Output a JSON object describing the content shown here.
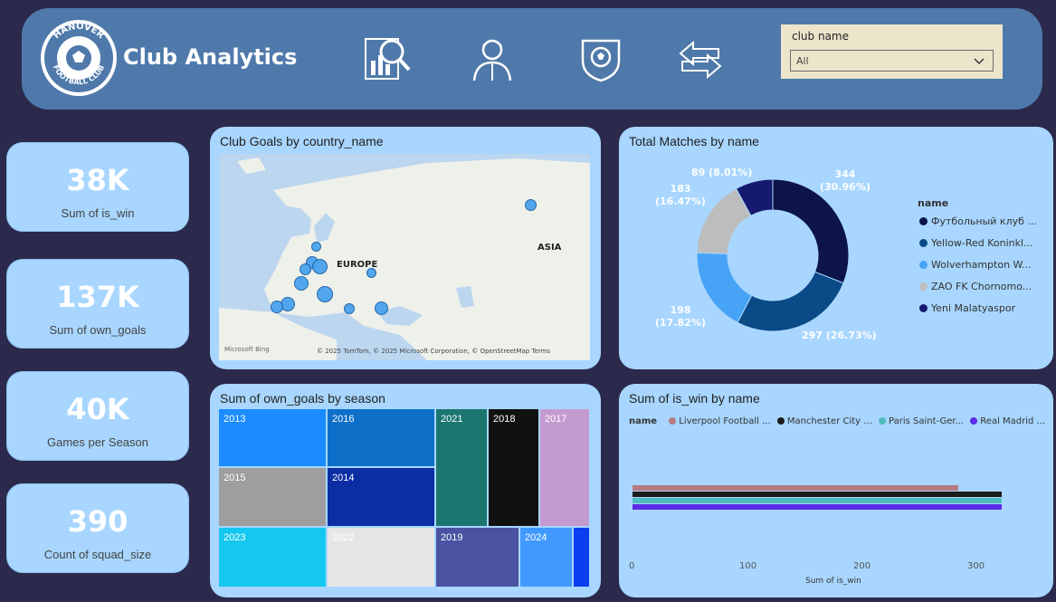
{
  "header": {
    "logo_top_text": "HANOVER",
    "logo_bottom_text": "FOOTBALL CLUB",
    "title": "Club Analytics",
    "nav_icons": [
      "analytics-icon",
      "player-icon",
      "club-badge-icon",
      "swap-icon"
    ],
    "filter": {
      "label": "club name",
      "value": "All"
    }
  },
  "kpis": [
    {
      "value": "38K",
      "label": "Sum of is_win"
    },
    {
      "value": "137K",
      "label": "Sum of own_goals"
    },
    {
      "value": "40K",
      "label": "Games per Season"
    },
    {
      "value": "390",
      "label": "Count of squad_size"
    }
  ],
  "map_panel": {
    "title": "Club Goals by country_name",
    "labels": {
      "europe": "EUROPE",
      "asia": "ASIA"
    },
    "credit": "© 2025 TomTom, © 2025 Microsoft Corporation, © OpenStreetMap  Terms",
    "bing": "Microsoft Bing"
  },
  "donut_panel": {
    "title": "Total Matches by name",
    "legend_title": "name",
    "legend": [
      {
        "label": "Футбольный клуб ...",
        "color": "#0c1448"
      },
      {
        "label": "Yellow-Red Koninkl...",
        "color": "#0a4a86"
      },
      {
        "label": "Wolverhampton W...",
        "color": "#47a3f5"
      },
      {
        "label": "ZAO FK Chornomo...",
        "color": "#bdbdbd"
      },
      {
        "label": "Yeni Malatyaspor",
        "color": "#161a6e"
      }
    ],
    "data_labels": [
      {
        "line1": "344",
        "line2": "(30.96%)"
      },
      {
        "line1": "297 (26.73%)",
        "line2": ""
      },
      {
        "line1": "198",
        "line2": "(17.82%)"
      },
      {
        "line1": "183",
        "line2": "(16.47%)"
      },
      {
        "line1": "89 (8.01%)",
        "line2": ""
      }
    ]
  },
  "treemap_panel": {
    "title": "Sum of own_goals by season",
    "tiles": [
      {
        "label": "2013",
        "color": "#1a8cff"
      },
      {
        "label": "2016",
        "color": "#0e6fc9"
      },
      {
        "label": "2021",
        "color": "#1b7670"
      },
      {
        "label": "2018",
        "color": "#111111"
      },
      {
        "label": "2017",
        "color": "#c49bd1"
      },
      {
        "label": "2015",
        "color": "#9e9e9e"
      },
      {
        "label": "2014",
        "color": "#0b2ea4"
      },
      {
        "label": "2023",
        "color": "#15c8f0"
      },
      {
        "label": "2022",
        "color": "#e6e6e6"
      },
      {
        "label": "2019",
        "color": "#4a53a2"
      },
      {
        "label": "2024",
        "color": "#4099ff"
      },
      {
        "label": "",
        "color": "#0d3df0"
      }
    ]
  },
  "bar_panel": {
    "title": "Sum of is_win by name",
    "legend_title": "name",
    "x_axis_title": "Sum of is_win",
    "x_ticks": [
      "0",
      "100",
      "200",
      "300"
    ]
  },
  "chart_data": [
    {
      "type": "pie",
      "title": "Total Matches by name",
      "categories": [
        "Футбольный клуб ...",
        "Yellow-Red Koninkl...",
        "Wolverhampton W...",
        "ZAO FK Chornomo...",
        "Yeni Malatyaspor"
      ],
      "values": [
        344,
        297,
        198,
        183,
        89
      ],
      "percentages": [
        30.96,
        26.73,
        17.82,
        16.47,
        8.01
      ],
      "legend_position": "right"
    },
    {
      "type": "bar",
      "orientation": "horizontal",
      "title": "Sum of is_win by name",
      "xlabel": "Sum of is_win",
      "xlim": [
        0,
        330
      ],
      "series": [
        {
          "name": "Liverpool Football ...",
          "values": [
            285
          ],
          "color": "#b67b80"
        },
        {
          "name": "Manchester City ...",
          "values": [
            323
          ],
          "color": "#1c1c1c"
        },
        {
          "name": "Paris Saint-Ger...",
          "values": [
            323
          ],
          "color": "#4fbcbe"
        },
        {
          "name": "Real Madrid ...",
          "values": [
            323
          ],
          "color": "#5b2be8"
        }
      ],
      "legend_position": "top"
    }
  ]
}
